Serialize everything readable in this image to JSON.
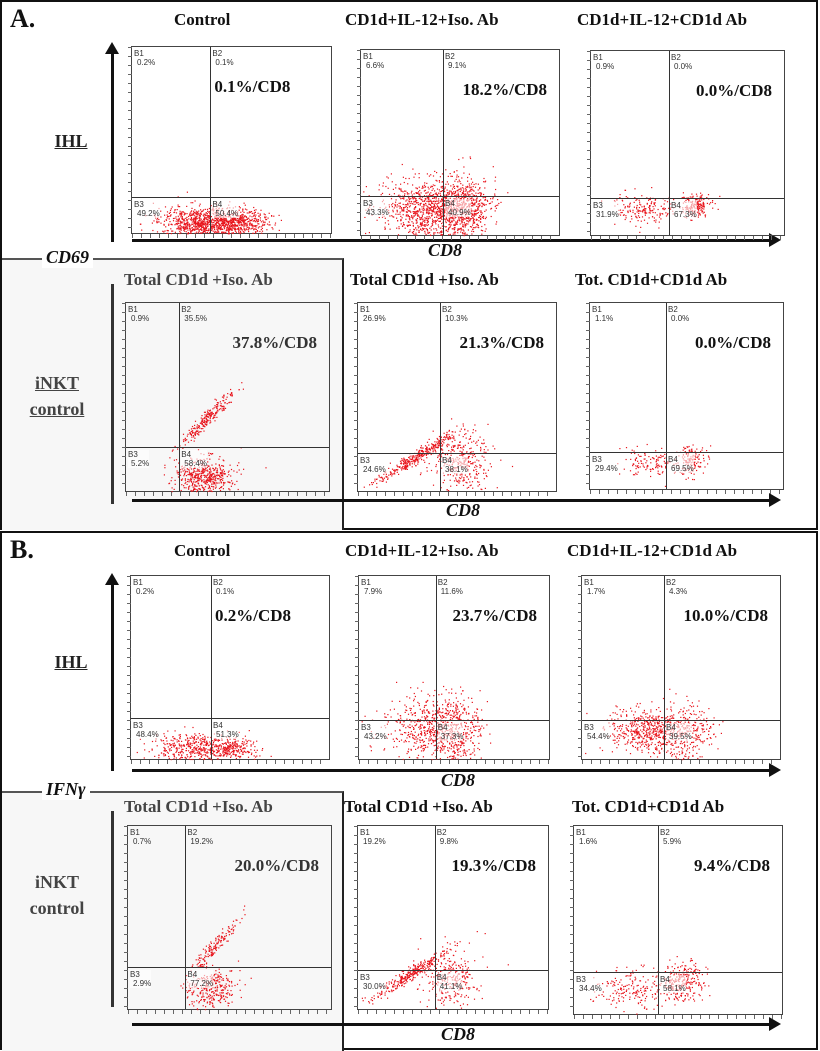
{
  "figure": {
    "panels": [
      {
        "letter": "A.",
        "y_axis_label": "CD69",
        "x_axis_label": "CD8",
        "rows": [
          {
            "label": "IHL",
            "plots": [
              {
                "title": "Control",
                "summary": "0.1%/CD8",
                "B1": "0.2%",
                "B2": "0.1%",
                "B3": "49.2%",
                "B4": "50.4%"
              },
              {
                "title": "CD1d+IL-12+Iso. Ab",
                "summary": "18.2%/CD8",
                "B1": "6.6%",
                "B2": "9.1%",
                "B3": "43.3%",
                "B4": "40.9%"
              },
              {
                "title": "CD1d+IL-12+CD1d Ab",
                "summary": "0.0%/CD8",
                "B1": "0.9%",
                "B2": "0.0%",
                "B3": "31.9%",
                "B4": "67.3%"
              }
            ]
          },
          {
            "label": "iNKT control",
            "label_line1": "iNKT",
            "label_line2": "control",
            "plots": [
              {
                "title": "Total CD1d +Iso. Ab",
                "summary": "37.8%/CD8",
                "B1": "0.9%",
                "B2": "35.5%",
                "B3": "5.2%",
                "B4": "58.4%"
              },
              {
                "title": "Total CD1d +Iso. Ab",
                "summary": "21.3%/CD8",
                "B1": "26.9%",
                "B2": "10.3%",
                "B3": "24.6%",
                "B4": "38.1%"
              },
              {
                "title": "Tot. CD1d+CD1d Ab",
                "summary": "0.0%/CD8",
                "B1": "1.1%",
                "B2": "0.0%",
                "B3": "29.4%",
                "B4": "69.5%"
              }
            ]
          }
        ]
      },
      {
        "letter": "B.",
        "y_axis_label": "IFNγ",
        "x_axis_label": "CD8",
        "rows": [
          {
            "label": "IHL",
            "plots": [
              {
                "title": "Control",
                "summary": "0.2%/CD8",
                "B1": "0.2%",
                "B2": "0.1%",
                "B3": "48.4%",
                "B4": "51.3%"
              },
              {
                "title": "CD1d+IL-12+Iso. Ab",
                "summary": "23.7%/CD8",
                "B1": "7.9%",
                "B2": "11.6%",
                "B3": "43.2%",
                "B4": "37.3%"
              },
              {
                "title": "CD1d+IL-12+CD1d Ab",
                "summary": "10.0%/CD8",
                "B1": "1.7%",
                "B2": "4.3%",
                "B3": "54.4%",
                "B4": "39.5%"
              }
            ]
          },
          {
            "label": "iNKT control",
            "label_line1": "iNKT",
            "label_line2": "control",
            "plots": [
              {
                "title": "Total CD1d +Iso. Ab",
                "summary": "20.0%/CD8",
                "B1": "0.7%",
                "B2": "19.2%",
                "B3": "2.9%",
                "B4": "77.2%"
              },
              {
                "title": "Total CD1d +Iso. Ab",
                "summary": "19.3%/CD8",
                "B1": "19.2%",
                "B2": "9.8%",
                "B3": "30.0%",
                "B4": "41.1%"
              },
              {
                "title": "Tot. CD1d+CD1d Ab",
                "summary": "9.4%/CD8",
                "B1": "1.6%",
                "B2": "5.9%",
                "B3": "34.4%",
                "B4": "58.1%"
              }
            ]
          }
        ]
      }
    ],
    "quadrant_names": [
      "B1",
      "B2",
      "B3",
      "B4"
    ],
    "dot_color": "#e8141c"
  },
  "chart_data": [
    {
      "type": "scatter",
      "panel": "A",
      "row": "IHL",
      "title": "Control",
      "xlabel": "CD8",
      "ylabel": "CD69",
      "quadrants": {
        "B1": 0.2,
        "B2": 0.1,
        "B3": 49.2,
        "B4": 50.4
      },
      "annotation": "0.1%/CD8"
    },
    {
      "type": "scatter",
      "panel": "A",
      "row": "IHL",
      "title": "CD1d+IL-12+Iso. Ab",
      "xlabel": "CD8",
      "ylabel": "CD69",
      "quadrants": {
        "B1": 6.6,
        "B2": 9.1,
        "B3": 43.3,
        "B4": 40.9
      },
      "annotation": "18.2%/CD8"
    },
    {
      "type": "scatter",
      "panel": "A",
      "row": "IHL",
      "title": "CD1d+IL-12+CD1d Ab",
      "xlabel": "CD8",
      "ylabel": "CD69",
      "quadrants": {
        "B1": 0.9,
        "B2": 0.0,
        "B3": 31.9,
        "B4": 67.3
      },
      "annotation": "0.0%/CD8"
    },
    {
      "type": "scatter",
      "panel": "A",
      "row": "iNKT control",
      "title": "Total CD1d +Iso. Ab",
      "xlabel": "CD8",
      "ylabel": "CD69",
      "quadrants": {
        "B1": 0.9,
        "B2": 35.5,
        "B3": 5.2,
        "B4": 58.4
      },
      "annotation": "37.8%/CD8"
    },
    {
      "type": "scatter",
      "panel": "A",
      "row": "iNKT control",
      "title": "Total CD1d +Iso. Ab",
      "xlabel": "CD8",
      "ylabel": "CD69",
      "quadrants": {
        "B1": 26.9,
        "B2": 10.3,
        "B3": 24.6,
        "B4": 38.1
      },
      "annotation": "21.3%/CD8"
    },
    {
      "type": "scatter",
      "panel": "A",
      "row": "iNKT control",
      "title": "Tot. CD1d+CD1d Ab",
      "xlabel": "CD8",
      "ylabel": "CD69",
      "quadrants": {
        "B1": 1.1,
        "B2": 0.0,
        "B3": 29.4,
        "B4": 69.5
      },
      "annotation": "0.0%/CD8"
    },
    {
      "type": "scatter",
      "panel": "B",
      "row": "IHL",
      "title": "Control",
      "xlabel": "CD8",
      "ylabel": "IFNγ",
      "quadrants": {
        "B1": 0.2,
        "B2": 0.1,
        "B3": 48.4,
        "B4": 51.3
      },
      "annotation": "0.2%/CD8"
    },
    {
      "type": "scatter",
      "panel": "B",
      "row": "IHL",
      "title": "CD1d+IL-12+Iso. Ab",
      "xlabel": "CD8",
      "ylabel": "IFNγ",
      "quadrants": {
        "B1": 7.9,
        "B2": 11.6,
        "B3": 43.2,
        "B4": 37.3
      },
      "annotation": "23.7%/CD8"
    },
    {
      "type": "scatter",
      "panel": "B",
      "row": "IHL",
      "title": "CD1d+IL-12+CD1d Ab",
      "xlabel": "CD8",
      "ylabel": "IFNγ",
      "quadrants": {
        "B1": 1.7,
        "B2": 4.3,
        "B3": 54.4,
        "B4": 39.5
      },
      "annotation": "10.0%/CD8"
    },
    {
      "type": "scatter",
      "panel": "B",
      "row": "iNKT control",
      "title": "Total CD1d +Iso. Ab",
      "xlabel": "CD8",
      "ylabel": "IFNγ",
      "quadrants": {
        "B1": 0.7,
        "B2": 19.2,
        "B3": 2.9,
        "B4": 77.2
      },
      "annotation": "20.0%/CD8"
    },
    {
      "type": "scatter",
      "panel": "B",
      "row": "iNKT control",
      "title": "Total CD1d +Iso. Ab",
      "xlabel": "CD8",
      "ylabel": "IFNγ",
      "quadrants": {
        "B1": 19.2,
        "B2": 9.8,
        "B3": 30.0,
        "B4": 41.1
      },
      "annotation": "19.3%/CD8"
    },
    {
      "type": "scatter",
      "panel": "B",
      "row": "iNKT control",
      "title": "Tot. CD1d+CD1d Ab",
      "xlabel": "CD8",
      "ylabel": "IFNγ",
      "quadrants": {
        "B1": 1.6,
        "B2": 5.9,
        "B3": 34.4,
        "B4": 58.1
      },
      "annotation": "9.4%/CD8"
    }
  ]
}
